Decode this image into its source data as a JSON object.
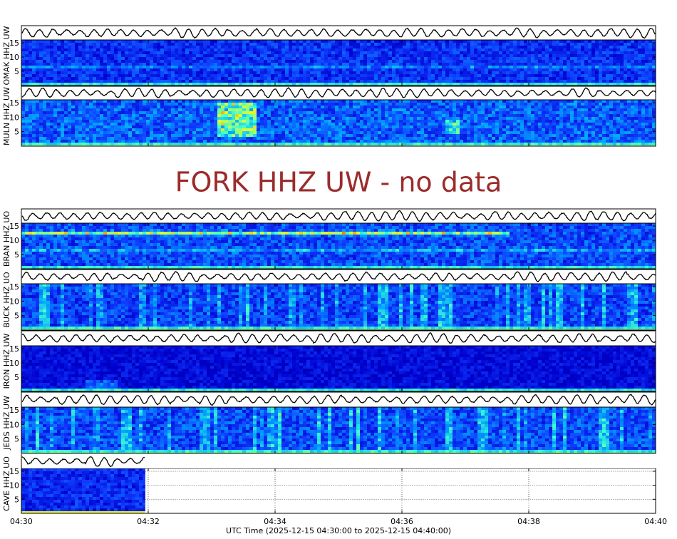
{
  "chart_data": {
    "type": "heatmap",
    "description_kind": "seismic spectrogram stack",
    "xlabel": "UTC Time (2025-12-15 04:30:00 to 2025-12-15 04:40:00)",
    "x_tick_labels": [
      "04:30",
      "04:32",
      "04:34",
      "04:36",
      "04:38",
      "04:40"
    ],
    "x_range_minutes": [
      0,
      10
    ],
    "y_range_hz": [
      0,
      16
    ],
    "y_tick_values": [
      5,
      10,
      15
    ],
    "y_tick_labels": [
      "5",
      "10",
      "15"
    ],
    "colormap": [
      "#00007f",
      "#0000d0",
      "#1040ff",
      "#00a0ff",
      "#40ffd0",
      "#e0ff30",
      "#ff8000"
    ],
    "stations": [
      {
        "label": "OMAK HHZ UW",
        "has_data": true,
        "data_end_minute": 10,
        "intensity": 0.32,
        "bands": [
          {
            "hz": 6.5,
            "strength": 0.15
          }
        ],
        "bursts": []
      },
      {
        "label": "MULN HHZ UW",
        "has_data": true,
        "data_end_minute": 10,
        "intensity": 0.42,
        "bands": [],
        "bursts": [
          {
            "start_minute": 3.1,
            "end_minute": 3.7,
            "hz_low": 3,
            "hz_high": 15,
            "strength": 0.35
          },
          {
            "start_minute": 6.7,
            "end_minute": 6.9,
            "hz_low": 4,
            "hz_high": 9,
            "strength": 0.25
          }
        ]
      },
      {
        "label": "FORK HHZ UW",
        "has_data": false,
        "no_data_text": "FORK HHZ UW - no data"
      },
      {
        "label": "BRAN HHZ UO",
        "has_data": true,
        "data_end_minute": 10,
        "intensity": 0.38,
        "bands": [
          {
            "hz": 12.5,
            "strength": 0.45,
            "end_minute": 7.7
          },
          {
            "hz": 6.5,
            "strength": 0.15,
            "end_minute": 10
          }
        ],
        "bursts": []
      },
      {
        "label": "BUCK HHZ UO",
        "has_data": true,
        "data_end_minute": 10,
        "intensity": 0.36,
        "bands": [],
        "bursts": [],
        "vertical_streaks": true
      },
      {
        "label": "IRON HHZ UW",
        "has_data": true,
        "data_end_minute": 10,
        "intensity": 0.22,
        "bands": [],
        "bursts": [
          {
            "start_minute": 1.0,
            "end_minute": 1.5,
            "hz_low": 1,
            "hz_high": 4,
            "strength": 0.2
          }
        ]
      },
      {
        "label": "JEDS HHZ UW",
        "has_data": true,
        "data_end_minute": 10,
        "intensity": 0.38,
        "bands": [],
        "bursts": [],
        "vertical_streaks": true
      },
      {
        "label": "CAVE HHZ UO",
        "has_data": true,
        "data_end_minute": 1.95,
        "intensity": 0.3,
        "bands": [],
        "bursts": []
      }
    ],
    "grid": "dotted where no data"
  }
}
